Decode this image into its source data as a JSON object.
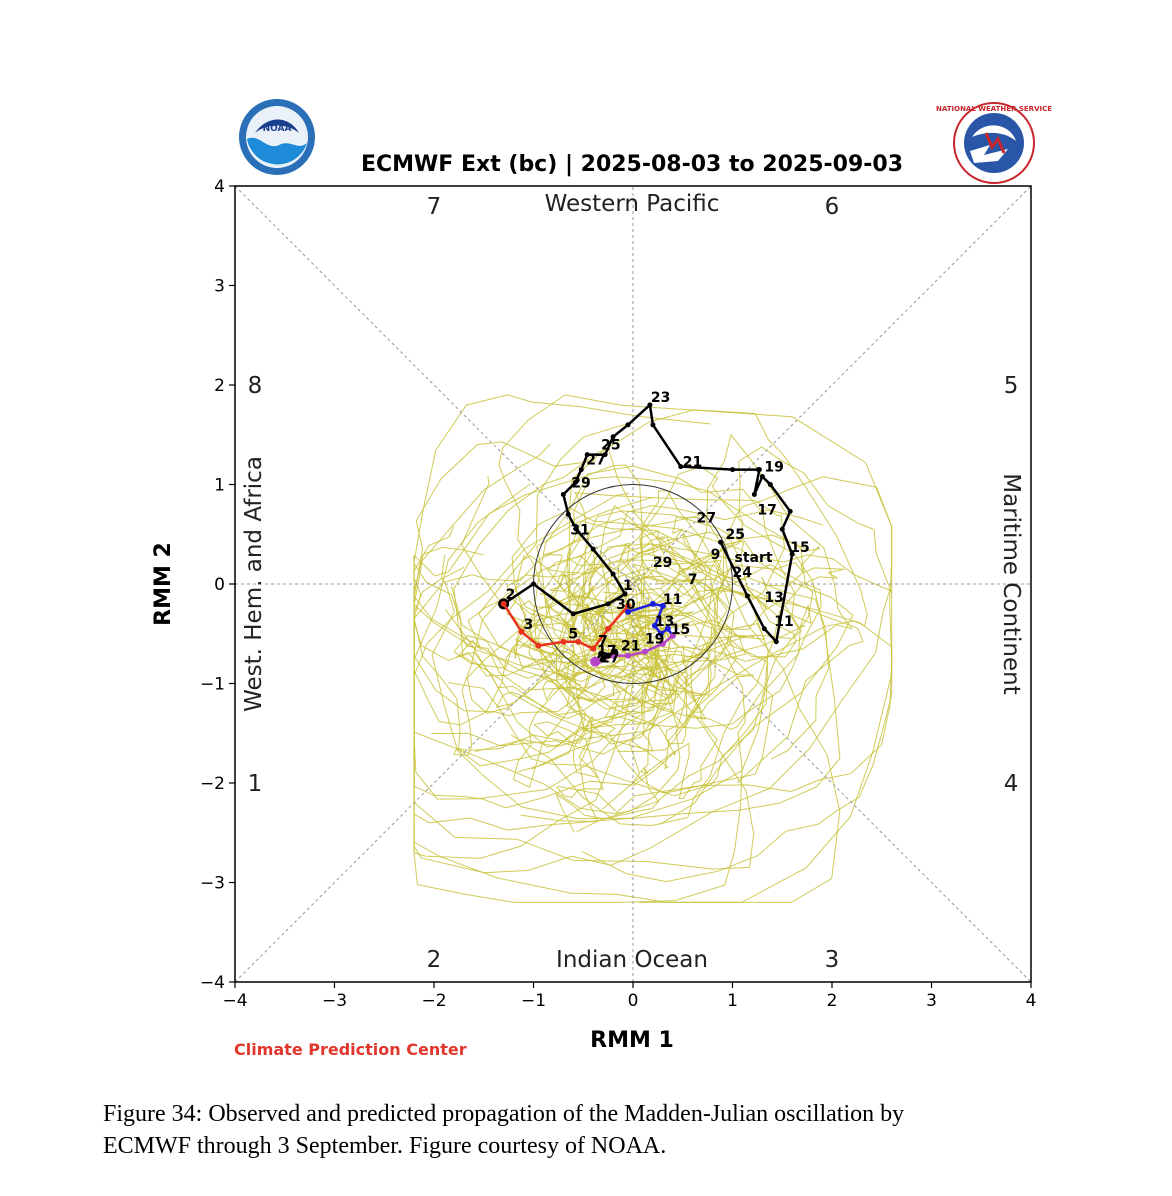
{
  "figure": {
    "caption_line1": "Figure 34: Observed and predicted propagation of the Madden-Julian oscillation by",
    "caption_line2": "ECMWF through 3 September. Figure courtesy of NOAA.",
    "credit": "Climate Prediction Center",
    "logos": {
      "left": "noaa-logo",
      "left_text": "NOAA",
      "right": "national-weather-service-logo",
      "right_text": "NATIONAL WEATHER SERVICE"
    }
  },
  "chart_data": {
    "type": "line",
    "title": "ECMWF Ext (bc) | 2025-08-03 to 2025-09-03",
    "xlabel": "RMM 1",
    "ylabel": "RMM 2",
    "xlim": [
      -4,
      4
    ],
    "ylim": [
      -4,
      4
    ],
    "xticks": [
      "−4",
      "−3",
      "−2",
      "−1",
      "0",
      "1",
      "2",
      "3",
      "4"
    ],
    "yticks": [
      "−4",
      "−3",
      "−2",
      "−1",
      "0",
      "1",
      "2",
      "3",
      "4"
    ],
    "region_labels": {
      "top": "Western Pacific",
      "bottom": "Indian Ocean",
      "left": "West. Hem. and Africa",
      "right": "Maritime Continent"
    },
    "phase_labels": [
      {
        "text": "1",
        "x": -3.8,
        "y": -2.0
      },
      {
        "text": "2",
        "x": -2.0,
        "y": -3.77
      },
      {
        "text": "3",
        "x": 2.0,
        "y": -3.77
      },
      {
        "text": "4",
        "x": 3.8,
        "y": -2.0
      },
      {
        "text": "5",
        "x": 3.8,
        "y": 2.0
      },
      {
        "text": "6",
        "x": 2.0,
        "y": 3.8
      },
      {
        "text": "7",
        "x": -2.0,
        "y": 3.8
      },
      {
        "text": "8",
        "x": -3.8,
        "y": 2.0
      }
    ],
    "unit_circle_radius": 1,
    "colors": {
      "observed": "#000000",
      "ensemble": "#c8c23a",
      "forecast_week1": "#e8331f",
      "forecast_week2": "#1f1fe0",
      "forecast_week3": "#b545c8",
      "forecast_week4": "#000000",
      "axis": "#000000",
      "grid": "#999999"
    },
    "observed": {
      "start_label": "start",
      "x": [
        0.88,
        1.15,
        1.32,
        1.44,
        1.6,
        1.5,
        1.58,
        1.38,
        1.3,
        1.22,
        1.27,
        1.26,
        1.0,
        0.48,
        0.2,
        0.17,
        -0.05,
        -0.2,
        -0.28,
        -0.46,
        -0.52,
        -0.58,
        -0.7,
        -0.65,
        -0.57,
        -0.4,
        -0.2,
        -0.08,
        -0.25,
        -0.6,
        -1.0,
        -1.3
      ],
      "y": [
        0.42,
        -0.12,
        -0.45,
        -0.58,
        0.3,
        0.55,
        0.73,
        1.0,
        1.08,
        0.9,
        1.15,
        1.15,
        1.15,
        1.18,
        1.6,
        1.8,
        1.6,
        1.48,
        1.3,
        1.3,
        1.15,
        1.02,
        0.9,
        0.7,
        0.55,
        0.35,
        0.1,
        -0.1,
        -0.2,
        -0.3,
        0.0,
        -0.2
      ],
      "point_labels": [
        {
          "text": "9",
          "x": 0.78,
          "y": 0.25
        },
        {
          "text": "11",
          "x": 1.42,
          "y": -0.42
        },
        {
          "text": "13",
          "x": 1.32,
          "y": -0.18
        },
        {
          "text": "15",
          "x": 1.58,
          "y": 0.32
        },
        {
          "text": "17",
          "x": 1.25,
          "y": 0.7
        },
        {
          "text": "19",
          "x": 1.32,
          "y": 1.13
        },
        {
          "text": "21",
          "x": 0.5,
          "y": 1.18
        },
        {
          "text": "23",
          "x": 0.18,
          "y": 1.83
        },
        {
          "text": "25",
          "x": -0.32,
          "y": 1.35
        },
        {
          "text": "27",
          "x": -0.47,
          "y": 1.2
        },
        {
          "text": "29",
          "x": -0.62,
          "y": 0.97
        },
        {
          "text": "31",
          "x": -0.63,
          "y": 0.5
        },
        {
          "text": "2",
          "x": -1.28,
          "y": -0.15
        },
        {
          "text": "25",
          "x": 0.93,
          "y": 0.45
        },
        {
          "text": "24",
          "x": 1.0,
          "y": 0.07
        },
        {
          "text": "27",
          "x": 0.64,
          "y": 0.62
        },
        {
          "text": "29",
          "x": 0.2,
          "y": 0.17
        },
        {
          "text": "7",
          "x": 0.55,
          "y": -0.0
        },
        {
          "text": "1",
          "x": -0.1,
          "y": -0.06
        },
        {
          "text": "30",
          "x": -0.17,
          "y": -0.25
        }
      ]
    },
    "forecast": {
      "week1": {
        "x": [
          -1.3,
          -1.12,
          -0.95,
          -0.7,
          -0.55,
          -0.4,
          -0.25,
          -0.05
        ],
        "y": [
          -0.2,
          -0.48,
          -0.62,
          -0.58,
          -0.58,
          -0.65,
          -0.45,
          -0.22
        ],
        "point_labels": [
          {
            "text": "3",
            "x": -1.1,
            "y": -0.45
          },
          {
            "text": "5",
            "x": -0.65,
            "y": -0.55
          },
          {
            "text": "7",
            "x": -0.35,
            "y": -0.62
          }
        ]
      },
      "week2": {
        "x": [
          -0.05,
          0.2,
          0.3,
          0.22,
          0.28,
          0.35,
          0.4
        ],
        "y": [
          -0.28,
          -0.2,
          -0.22,
          -0.42,
          -0.5,
          -0.45,
          -0.52
        ],
        "point_labels": [
          {
            "text": "11",
            "x": 0.3,
            "y": -0.2
          },
          {
            "text": "13",
            "x": 0.22,
            "y": -0.42
          },
          {
            "text": "15",
            "x": 0.38,
            "y": -0.5
          }
        ]
      },
      "week3": {
        "x": [
          0.4,
          0.3,
          0.12,
          -0.05,
          -0.2,
          -0.35,
          -0.38
        ],
        "y": [
          -0.52,
          -0.6,
          -0.68,
          -0.72,
          -0.72,
          -0.78,
          -0.78
        ],
        "point_labels": [
          {
            "text": "19",
            "x": 0.12,
            "y": -0.6
          },
          {
            "text": "21",
            "x": -0.12,
            "y": -0.67
          }
        ]
      },
      "week4": {
        "x": [
          -0.38,
          -0.32,
          -0.25,
          -0.18,
          -0.3,
          -0.38
        ],
        "y": [
          -0.78,
          -0.7,
          -0.72,
          -0.68,
          -0.75,
          -0.8
        ],
        "point_labels": [
          {
            "text": "17",
            "x": -0.36,
            "y": -0.72
          },
          {
            "text": "27",
            "x": -0.33,
            "y": -0.79
          }
        ]
      }
    },
    "ensemble_spread": {
      "center": [
        -0.15,
        -0.55
      ],
      "members": 60
    }
  }
}
